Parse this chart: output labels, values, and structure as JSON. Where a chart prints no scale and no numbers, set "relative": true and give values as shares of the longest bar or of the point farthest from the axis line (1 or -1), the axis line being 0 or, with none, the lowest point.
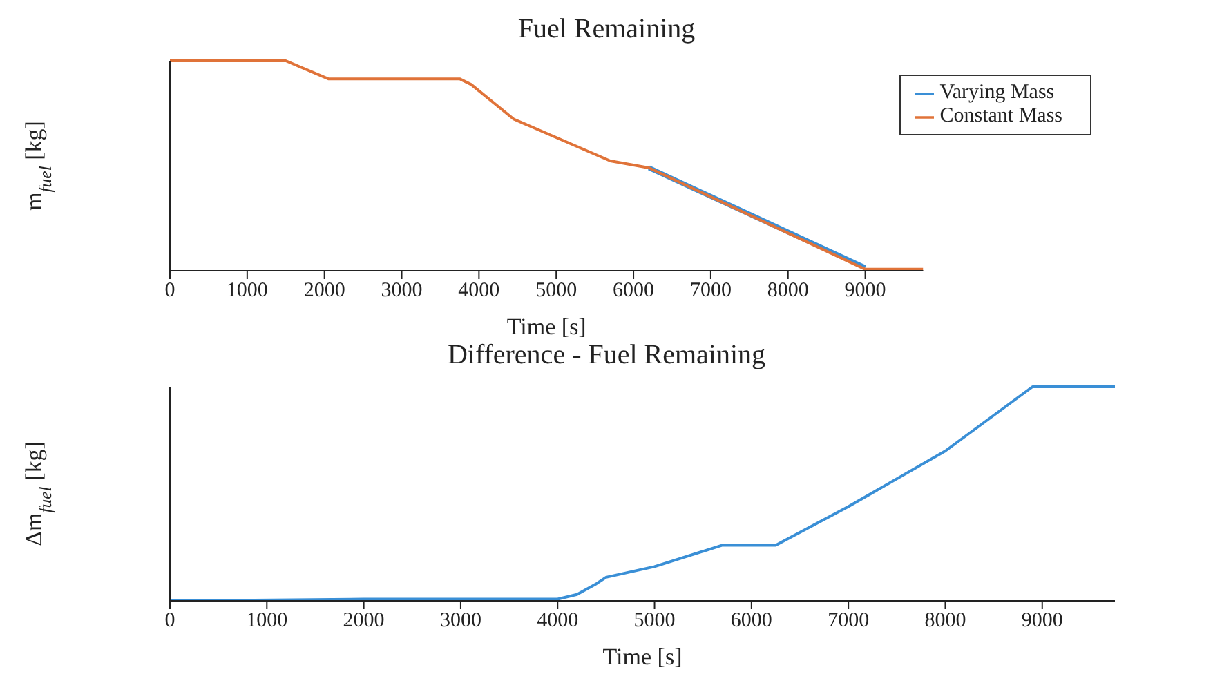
{
  "chart_data": [
    {
      "type": "line",
      "title": "Fuel Remaining",
      "xlabel": "Time [s]",
      "ylabel": "m$_{fuel}$ [kg]",
      "relative": true,
      "xlim": [
        0,
        9750
      ],
      "xticks": [
        0,
        1000,
        2000,
        3000,
        4000,
        5000,
        6000,
        7000,
        8000,
        9000
      ],
      "legend": "top right",
      "x": [
        0,
        1500,
        2050,
        3750,
        3900,
        4450,
        5700,
        6200,
        9000,
        9750
      ],
      "series": [
        {
          "name": "Varying Mass",
          "color": "#3a8fd6",
          "values": [
            null,
            null,
            null,
            null,
            null,
            null,
            null,
            0.49,
            0.015,
            null
          ]
        },
        {
          "name": "Constant Mass",
          "color": "#e07339",
          "values": [
            1,
            1,
            0.914,
            0.914,
            0.887,
            0.722,
            0.523,
            0.49,
            0.007,
            0.007
          ]
        }
      ]
    },
    {
      "type": "line",
      "title": "Difference - Fuel Remaining",
      "xlabel": "Time [s]",
      "ylabel": "Δm$_{fuel}$ [kg]",
      "relative": true,
      "xlim": [
        0,
        9750
      ],
      "xticks": [
        0,
        1000,
        2000,
        3000,
        4000,
        5000,
        6000,
        7000,
        8000,
        9000
      ],
      "x": [
        0,
        2000,
        4000,
        4200,
        4400,
        4500,
        5000,
        5700,
        6250,
        7000,
        8000,
        8900,
        9750
      ],
      "series": [
        {
          "color": "#3a8fd6",
          "values": [
            0,
            0.008,
            0.008,
            0.03,
            0.08,
            0.11,
            0.16,
            0.26,
            0.26,
            0.44,
            0.7,
            1,
            1
          ]
        }
      ]
    }
  ]
}
